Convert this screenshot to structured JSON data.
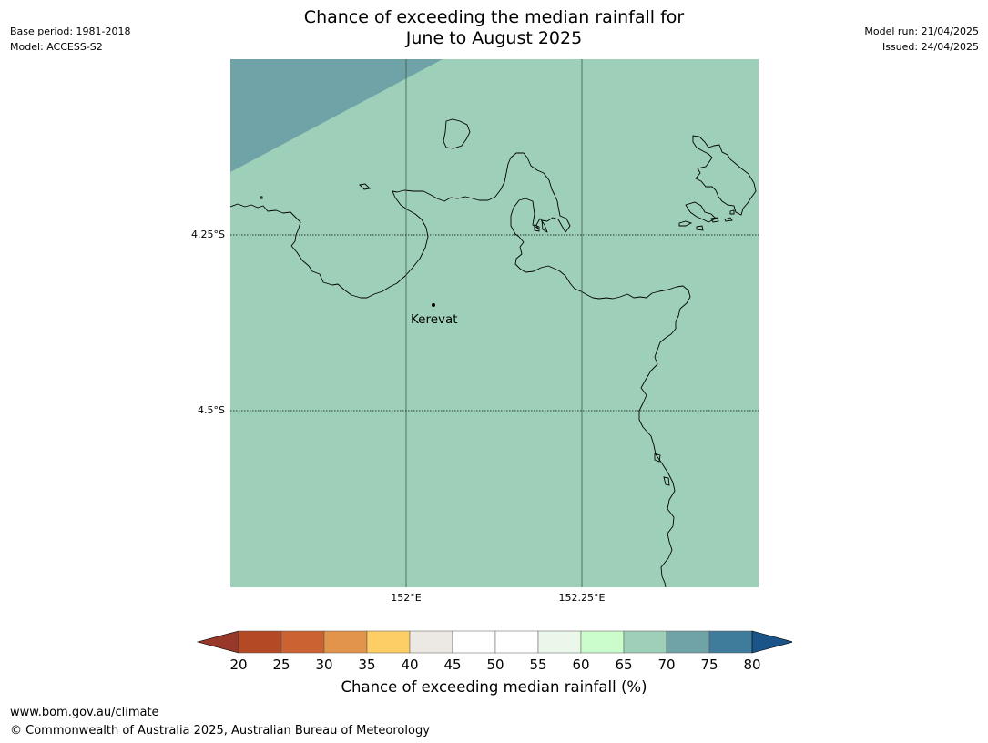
{
  "header": {
    "title_line1": "Chance of exceeding the median rainfall for",
    "title_line2": "June to August 2025",
    "base_period": "Base period: 1981-2018",
    "model": "Model: ACCESS-S2",
    "model_run": "Model run: 21/04/2025",
    "issued": "Issued: 24/04/2025"
  },
  "map": {
    "place_label": "Kerevat",
    "lat_labels": [
      "4.25°S",
      "4.5°S"
    ],
    "lon_labels": [
      "152°E",
      "152.25°E"
    ],
    "fill_category": "65-70",
    "corner_category": "70-75"
  },
  "colorbar": {
    "ticks": [
      "20",
      "25",
      "30",
      "35",
      "40",
      "45",
      "50",
      "55",
      "60",
      "65",
      "70",
      "75",
      "80"
    ],
    "colors": [
      "#b34a25",
      "#cb6231",
      "#e2944a",
      "#fdcd66",
      "#ece9e5",
      "#ffffff",
      "#ffffff",
      "#eaf7ea",
      "#cbfccb",
      "#9ed0b9",
      "#6fa3a7",
      "#3f7b9b"
    ],
    "under_color": "#98382a",
    "over_color": "#1b5488",
    "label": "Chance of exceeding median rainfall (%)"
  },
  "footer": {
    "url": "www.bom.gov.au/climate",
    "copyright": "© Commonwealth of Australia 2025, Australian Bureau of Meteorology"
  }
}
